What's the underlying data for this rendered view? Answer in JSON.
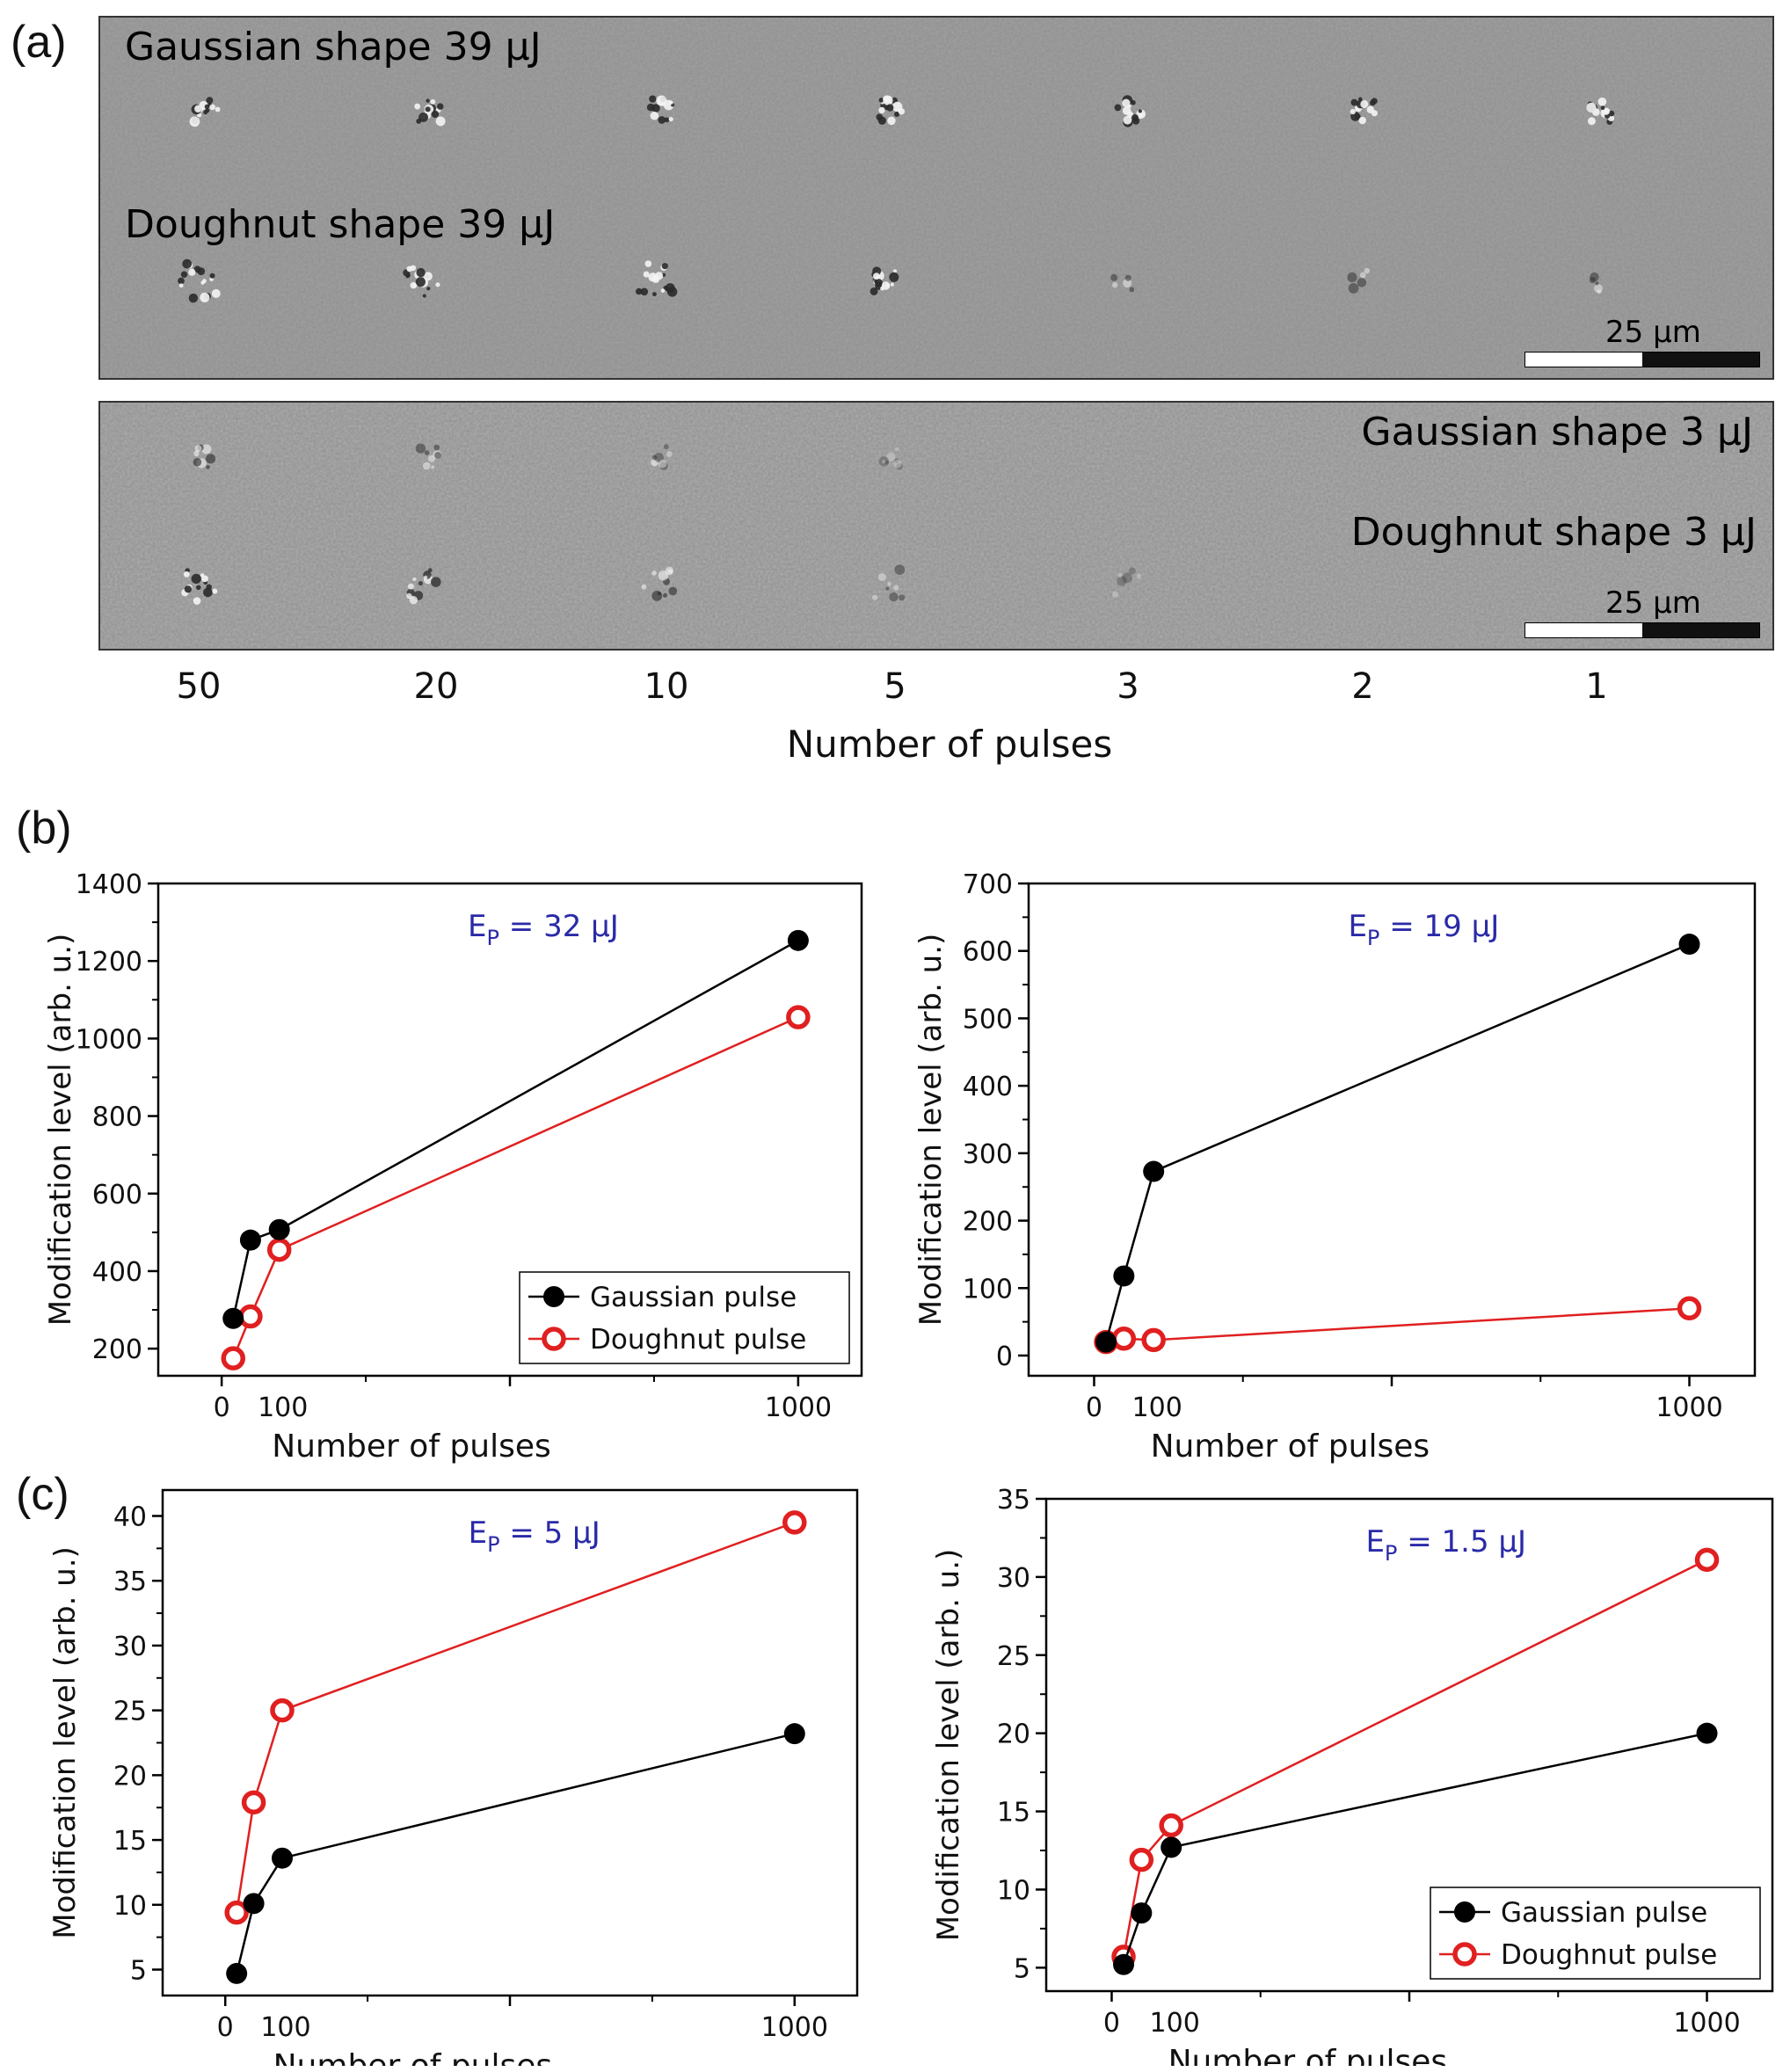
{
  "panel_a": {
    "label": "(a)",
    "top_image": {
      "gaussian_label": "Gaussian shape 39 μJ",
      "doughnut_label": "Doughnut shape 39 μJ",
      "scale_label": "25 μm"
    },
    "bottom_image": {
      "gaussian_label": "Gaussian shape 3 μJ",
      "doughnut_label": "Doughnut shape 3 μJ",
      "scale_label": "25 μm"
    },
    "pulse_numbers": [
      "50",
      "20",
      "10",
      "5",
      "3",
      "2",
      "1"
    ],
    "axis_title": "Number of pulses"
  },
  "panel_b": {
    "label": "(b)"
  },
  "panel_c": {
    "label": "(c)"
  },
  "colors": {
    "gaussian": "#000000",
    "doughnut": "#e02020",
    "annotation": "#2a2aa8"
  },
  "chart_data": [
    {
      "type": "line",
      "panel": "b-left",
      "annotation": {
        "base": "E",
        "sub": "P",
        "rest": " = 32 μJ"
      },
      "xlabel": "Number of pulses",
      "ylabel": "Modification level (arb. u.)",
      "xlim": [
        -110,
        1110
      ],
      "ylim": [
        130,
        1400
      ],
      "xticks": [
        0,
        100,
        1000
      ],
      "yticks": [
        200,
        400,
        600,
        800,
        1000,
        1200,
        1400
      ],
      "legend": {
        "position": "bottom-right",
        "entries": [
          "Gaussian pulse",
          "Doughnut pulse"
        ]
      },
      "series": [
        {
          "name": "Gaussian pulse",
          "marker": "filled",
          "x": [
            20,
            50,
            100,
            1000
          ],
          "y": [
            278,
            480,
            507,
            1253
          ]
        },
        {
          "name": "Doughnut pulse",
          "marker": "open",
          "x": [
            20,
            50,
            100,
            1000
          ],
          "y": [
            175,
            283,
            455,
            1055
          ]
        }
      ]
    },
    {
      "type": "line",
      "panel": "b-right",
      "annotation": {
        "base": "E",
        "sub": "P",
        "rest": " = 19 μJ"
      },
      "xlabel": "Number of pulses",
      "ylabel": "Modification level (arb. u.)",
      "xlim": [
        -110,
        1110
      ],
      "ylim": [
        -30,
        700
      ],
      "xticks": [
        0,
        100,
        1000
      ],
      "yticks": [
        0,
        100,
        200,
        300,
        400,
        500,
        600,
        700
      ],
      "series": [
        {
          "name": "Gaussian pulse",
          "marker": "filled",
          "x": [
            20,
            50,
            100,
            1000
          ],
          "y": [
            20,
            118,
            273,
            610
          ]
        },
        {
          "name": "Doughnut pulse",
          "marker": "open",
          "x": [
            20,
            50,
            100,
            1000
          ],
          "y": [
            20,
            25,
            23,
            70
          ]
        }
      ]
    },
    {
      "type": "line",
      "panel": "c-left",
      "annotation": {
        "base": "E",
        "sub": "P",
        "rest": " = 5 μJ"
      },
      "xlabel": "Number of pulses",
      "ylabel": "Modification level (arb. u.)",
      "xlim": [
        -110,
        1110
      ],
      "ylim": [
        3,
        42
      ],
      "xticks": [
        0,
        100,
        1000
      ],
      "yticks": [
        5,
        10,
        15,
        20,
        25,
        30,
        35,
        40
      ],
      "series": [
        {
          "name": "Gaussian pulse",
          "marker": "filled",
          "x": [
            20,
            50,
            100,
            1000
          ],
          "y": [
            4.7,
            10.1,
            13.6,
            23.2
          ]
        },
        {
          "name": "Doughnut pulse",
          "marker": "open",
          "x": [
            20,
            50,
            100,
            1000
          ],
          "y": [
            9.4,
            17.9,
            25.0,
            39.5
          ]
        }
      ]
    },
    {
      "type": "line",
      "panel": "c-right",
      "annotation": {
        "base": "E",
        "sub": "P",
        "rest": " = 1.5 μJ"
      },
      "xlabel": "Number of pulses",
      "ylabel": "Modification level (arb. u.)",
      "xlim": [
        -110,
        1110
      ],
      "ylim": [
        3.5,
        35
      ],
      "xticks": [
        0,
        100,
        1000
      ],
      "yticks": [
        5,
        10,
        15,
        20,
        25,
        30,
        35
      ],
      "legend": {
        "position": "bottom-right",
        "entries": [
          "Gaussian pulse",
          "Doughnut pulse"
        ]
      },
      "series": [
        {
          "name": "Gaussian pulse",
          "marker": "filled",
          "x": [
            20,
            50,
            100,
            1000
          ],
          "y": [
            5.2,
            8.5,
            12.7,
            20.0
          ]
        },
        {
          "name": "Doughnut pulse",
          "marker": "open",
          "x": [
            20,
            50,
            100,
            1000
          ],
          "y": [
            5.7,
            11.9,
            14.1,
            31.1
          ]
        }
      ]
    }
  ]
}
